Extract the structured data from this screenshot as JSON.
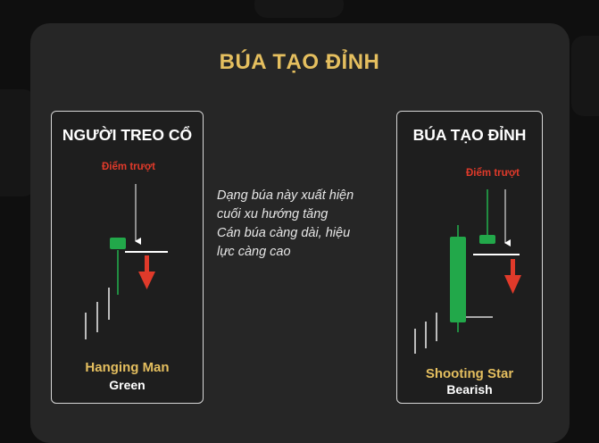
{
  "title": "BÚA TẠO ĐỈNH",
  "left_panel": {
    "heading": "NGƯỜI TREO CỔ",
    "slip_label": "Điểm trượt",
    "pattern_name": "Hanging Man",
    "pattern_sub": "Green"
  },
  "right_panel": {
    "heading": "BÚA TẠO ĐỈNH",
    "slip_label": "Điểm trượt",
    "pattern_name": "Shooting Star",
    "pattern_sub": "Bearish"
  },
  "description": [
    "Dạng búa này xuất hiện",
    "cuối xu hướng tăng",
    "Cán búa càng dài, hiệu",
    "lực càng cao"
  ],
  "colors": {
    "gold": "#e5bf5f",
    "red": "#e03a2a",
    "green_candle": "#22a84a",
    "card_bg": "#262626"
  }
}
